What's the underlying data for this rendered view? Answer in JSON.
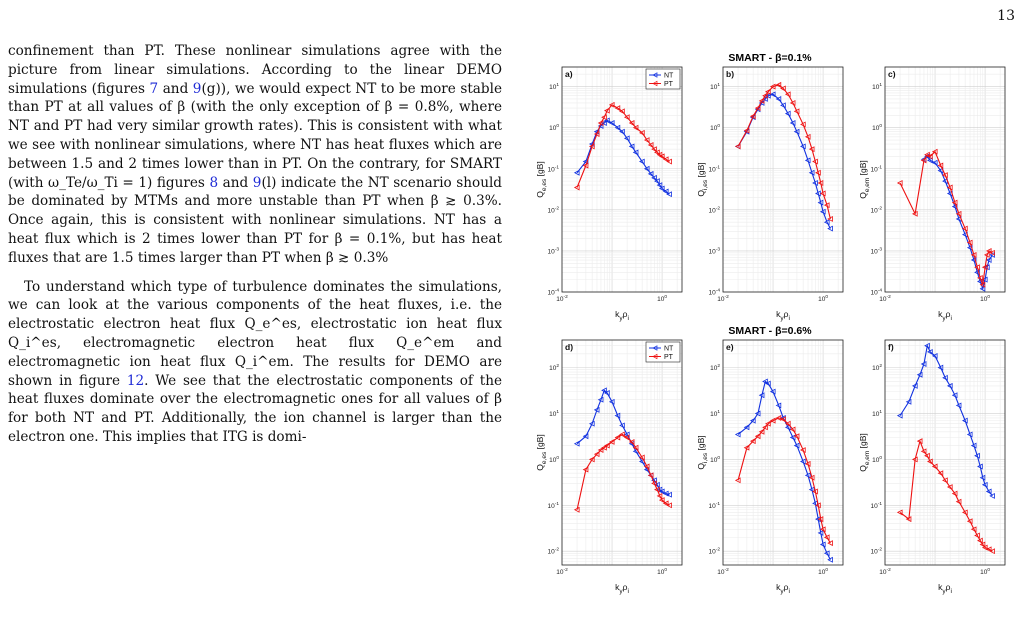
{
  "page_number": "13",
  "paragraphs": [
    [
      {
        "t": "confinement than PT. These nonlinear simulations agree with the picture from linear simulations. According to the linear DEMO simulations (figures "
      },
      {
        "t": "7",
        "ref": true
      },
      {
        "t": " and "
      },
      {
        "t": "9",
        "ref": true
      },
      {
        "t": "(g)), we would expect NT to be more stable than PT at all values of β (with the only exception of β = 0.8%, where NT and PT had very similar growth rates). This is consistent with what we see with nonlinear simulations, where NT has heat fluxes which are between 1.5 and 2 times lower than in PT. On the contrary, for SMART (with ω_Te/ω_Ti = 1) figures "
      },
      {
        "t": "8",
        "ref": true
      },
      {
        "t": " and "
      },
      {
        "t": "9",
        "ref": true
      },
      {
        "t": "(l) indicate the NT scenario should be dominated by MTMs and more unstable than PT when β ≳ 0.3%. Once again, this is consistent with nonlinear simulations. NT has a heat flux which is 2 times lower than PT for β = 0.1%, but has heat fluxes that are 1.5 times larger than PT when β ≳ 0.3%"
      }
    ],
    [
      {
        "t": "To understand which type of turbulence dominates the simulations, we can look at the various components of the heat fluxes, i.e. the electrostatic electron heat flux Q_e^es, electrostatic ion heat flux Q_i^es, electromagnetic electron heat flux Q_e^em and electromagnetic ion heat flux Q_i^em. The results for DEMO are shown in figure "
      },
      {
        "t": "12",
        "ref": true
      },
      {
        "t": ". We see that the electrostatic components of the heat fluxes dominate over the electromagnetic ones for all values of β for both NT and PT. Additionally, the ion channel is larger than the electron one. This implies that ITG is domi-"
      }
    ]
  ],
  "figure": {
    "colors": {
      "NT": "#1030e0",
      "PT": "#ee1111"
    },
    "row_titles": [
      "SMART - β=0.1%",
      "SMART - β=0.6%"
    ],
    "legend": [
      "NT",
      "PT"
    ],
    "x_label": "k_yρ_i",
    "chart_data": [
      {
        "type": "line",
        "panel": "a)",
        "title": "SMART - β=0.1%",
        "ylabel": "Q_e,es [gB]",
        "xlabel": "k_yρ_i",
        "x_scale": "log",
        "y_scale": "log",
        "xlim": [
          0.01,
          2.5
        ],
        "ylim": [
          0.0001,
          30
        ],
        "legend": "top-right",
        "series": [
          {
            "name": "NT",
            "x": [
              0.02,
              0.03,
              0.04,
              0.05,
              0.06,
              0.07,
              0.08,
              0.1,
              0.13,
              0.16,
              0.2,
              0.25,
              0.3,
              0.4,
              0.5,
              0.6,
              0.7,
              0.8,
              0.9,
              1.0,
              1.2,
              1.4
            ],
            "y": [
              0.08,
              0.15,
              0.4,
              0.8,
              1.1,
              1.3,
              1.5,
              1.3,
              1.0,
              0.8,
              0.55,
              0.35,
              0.25,
              0.15,
              0.1,
              0.075,
              0.06,
              0.05,
              0.04,
              0.033,
              0.028,
              0.024
            ]
          },
          {
            "name": "PT",
            "x": [
              0.02,
              0.03,
              0.04,
              0.05,
              0.06,
              0.07,
              0.08,
              0.1,
              0.13,
              0.16,
              0.2,
              0.25,
              0.3,
              0.4,
              0.5,
              0.6,
              0.7,
              0.8,
              0.9,
              1.0,
              1.2,
              1.4
            ],
            "y": [
              0.035,
              0.12,
              0.35,
              0.7,
              1.3,
              1.8,
              2.6,
              3.6,
              3.0,
              2.5,
              1.8,
              1.3,
              1.0,
              0.75,
              0.5,
              0.38,
              0.3,
              0.25,
              0.22,
              0.2,
              0.17,
              0.15
            ]
          }
        ]
      },
      {
        "type": "line",
        "panel": "b)",
        "title": "SMART - β=0.1%",
        "ylabel": "Q_i,es [gB]",
        "xlabel": "k_yρ_i",
        "x_scale": "log",
        "y_scale": "log",
        "xlim": [
          0.01,
          2.5
        ],
        "ylim": [
          0.0001,
          30
        ],
        "series": [
          {
            "name": "NT",
            "x": [
              0.02,
              0.03,
              0.04,
              0.05,
              0.06,
              0.07,
              0.08,
              0.1,
              0.13,
              0.16,
              0.2,
              0.25,
              0.3,
              0.4,
              0.5,
              0.6,
              0.7,
              0.8,
              0.9,
              1.0,
              1.2,
              1.4
            ],
            "y": [
              0.35,
              0.8,
              1.8,
              2.8,
              4.0,
              5.0,
              6.0,
              6.5,
              5.0,
              3.5,
              2.2,
              1.3,
              0.8,
              0.35,
              0.16,
              0.08,
              0.045,
              0.025,
              0.015,
              0.009,
              0.005,
              0.0035
            ]
          },
          {
            "name": "PT",
            "x": [
              0.02,
              0.03,
              0.04,
              0.05,
              0.06,
              0.07,
              0.08,
              0.1,
              0.13,
              0.16,
              0.2,
              0.25,
              0.3,
              0.4,
              0.5,
              0.6,
              0.7,
              0.8,
              0.9,
              1.0,
              1.2,
              1.4
            ],
            "y": [
              0.35,
              0.85,
              1.9,
              3.0,
              4.5,
              6.0,
              7.5,
              10,
              11,
              9,
              6.5,
              4,
              2.5,
              1.2,
              0.6,
              0.3,
              0.15,
              0.08,
              0.045,
              0.025,
              0.013,
              0.006
            ]
          }
        ]
      },
      {
        "type": "line",
        "panel": "c)",
        "title": "SMART - β=0.1%",
        "ylabel": "Q_e,em [gB]",
        "xlabel": "k_yρ_i",
        "x_scale": "log",
        "y_scale": "log",
        "xlim": [
          0.01,
          2.5
        ],
        "ylim": [
          0.0001,
          30
        ],
        "series": [
          {
            "name": "NT",
            "x": [
              0.06,
              0.07,
              0.08,
              0.1,
              0.13,
              0.16,
              0.2,
              0.25,
              0.3,
              0.4,
              0.5,
              0.6,
              0.7,
              0.8,
              0.9,
              1.0,
              1.1,
              1.2,
              1.4
            ],
            "y": [
              0.17,
              0.2,
              0.16,
              0.14,
              0.09,
              0.05,
              0.025,
              0.012,
              0.006,
              0.0025,
              0.0012,
              0.0006,
              0.0003,
              0.00018,
              0.00012,
              0.0002,
              0.0004,
              0.0006,
              0.0008
            ]
          },
          {
            "name": "PT",
            "x": [
              0.02,
              0.04,
              0.06,
              0.07,
              0.08,
              0.1,
              0.13,
              0.16,
              0.2,
              0.25,
              0.3,
              0.4,
              0.5,
              0.6,
              0.7,
              0.8,
              0.9,
              1.0,
              1.1,
              1.2,
              1.4
            ],
            "y": [
              0.045,
              0.008,
              0.16,
              0.22,
              0.2,
              0.26,
              0.12,
              0.07,
              0.035,
              0.015,
              0.008,
              0.0035,
              0.0016,
              0.0008,
              0.0004,
              0.00022,
              0.00015,
              0.0004,
              0.0008,
              0.001,
              0.0009
            ]
          }
        ]
      },
      {
        "type": "line",
        "panel": "d)",
        "title": "SMART - β=0.6%",
        "ylabel": "Q_e,es [gB]",
        "xlabel": "k_yρ_i",
        "x_scale": "log",
        "y_scale": "log",
        "xlim": [
          0.01,
          2.5
        ],
        "ylim": [
          0.005,
          400
        ],
        "legend": "top-right",
        "series": [
          {
            "name": "NT",
            "x": [
              0.02,
              0.03,
              0.04,
              0.05,
              0.06,
              0.07,
              0.08,
              0.1,
              0.13,
              0.16,
              0.2,
              0.25,
              0.3,
              0.4,
              0.5,
              0.6,
              0.7,
              0.8,
              0.9,
              1.0,
              1.2,
              1.4
            ],
            "y": [
              2.2,
              3.2,
              6,
              12,
              20,
              32,
              28,
              18,
              9,
              5.5,
              3.5,
              2.2,
              1.5,
              0.9,
              0.6,
              0.45,
              0.35,
              0.28,
              0.22,
              0.2,
              0.18,
              0.17
            ]
          },
          {
            "name": "PT",
            "x": [
              0.02,
              0.03,
              0.04,
              0.05,
              0.06,
              0.07,
              0.08,
              0.1,
              0.13,
              0.16,
              0.2,
              0.25,
              0.3,
              0.4,
              0.5,
              0.6,
              0.7,
              0.8,
              0.9,
              1.0,
              1.2,
              1.4
            ],
            "y": [
              0.08,
              0.6,
              1.0,
              1.3,
              1.6,
              1.8,
              2.0,
              2.4,
              3.0,
              3.5,
              3.0,
              2.4,
              1.8,
              1.1,
              0.7,
              0.45,
              0.3,
              0.22,
              0.16,
              0.13,
              0.11,
              0.1
            ]
          }
        ]
      },
      {
        "type": "line",
        "panel": "e)",
        "title": "SMART - β=0.6%",
        "ylabel": "Q_i,es [gB]",
        "xlabel": "k_yρ_i",
        "x_scale": "log",
        "y_scale": "log",
        "xlim": [
          0.01,
          2.5
        ],
        "ylim": [
          0.005,
          400
        ],
        "series": [
          {
            "name": "NT",
            "x": [
              0.02,
              0.03,
              0.04,
              0.05,
              0.06,
              0.07,
              0.08,
              0.1,
              0.13,
              0.16,
              0.2,
              0.25,
              0.3,
              0.4,
              0.5,
              0.6,
              0.7,
              0.8,
              0.9,
              1.0,
              1.2,
              1.4
            ],
            "y": [
              3.5,
              5,
              7,
              10,
              25,
              50,
              45,
              30,
              15,
              8,
              5,
              3,
              2,
              0.9,
              0.45,
              0.22,
              0.11,
              0.05,
              0.025,
              0.014,
              0.009,
              0.0065
            ]
          },
          {
            "name": "PT",
            "x": [
              0.02,
              0.03,
              0.04,
              0.05,
              0.06,
              0.07,
              0.08,
              0.1,
              0.13,
              0.16,
              0.2,
              0.25,
              0.3,
              0.4,
              0.5,
              0.6,
              0.7,
              0.8,
              0.9,
              1.0,
              1.2,
              1.4
            ],
            "y": [
              0.35,
              1.8,
              2.5,
              3.2,
              4,
              5,
              6,
              7,
              8,
              7.5,
              6,
              4.5,
              3.2,
              1.6,
              0.8,
              0.4,
              0.2,
              0.1,
              0.05,
              0.03,
              0.02,
              0.015
            ]
          }
        ]
      },
      {
        "type": "line",
        "panel": "f)",
        "title": "SMART - β=0.6%",
        "ylabel": "Q_e,em [gB]",
        "xlabel": "k_yρ_i",
        "x_scale": "log",
        "y_scale": "log",
        "xlim": [
          0.01,
          2.5
        ],
        "ylim": [
          0.005,
          400
        ],
        "series": [
          {
            "name": "NT",
            "x": [
              0.02,
              0.03,
              0.04,
              0.05,
              0.06,
              0.07,
              0.08,
              0.1,
              0.13,
              0.16,
              0.2,
              0.25,
              0.3,
              0.4,
              0.5,
              0.6,
              0.7,
              0.8,
              0.9,
              1.0,
              1.2,
              1.4
            ],
            "y": [
              9,
              18,
              40,
              70,
              120,
              300,
              220,
              180,
              100,
              60,
              40,
              25,
              15,
              7,
              3.5,
              2,
              1.2,
              0.7,
              0.4,
              0.28,
              0.2,
              0.16
            ]
          },
          {
            "name": "PT",
            "x": [
              0.02,
              0.03,
              0.04,
              0.05,
              0.06,
              0.07,
              0.08,
              0.1,
              0.13,
              0.16,
              0.2,
              0.25,
              0.3,
              0.4,
              0.5,
              0.6,
              0.7,
              0.8,
              0.9,
              1.0,
              1.2,
              1.4
            ],
            "y": [
              0.07,
              0.05,
              1.0,
              2.5,
              1.5,
              1.2,
              0.9,
              0.7,
              0.5,
              0.35,
              0.25,
              0.18,
              0.12,
              0.07,
              0.045,
              0.03,
              0.022,
              0.017,
              0.014,
              0.012,
              0.011,
              0.01
            ]
          }
        ]
      }
    ]
  }
}
